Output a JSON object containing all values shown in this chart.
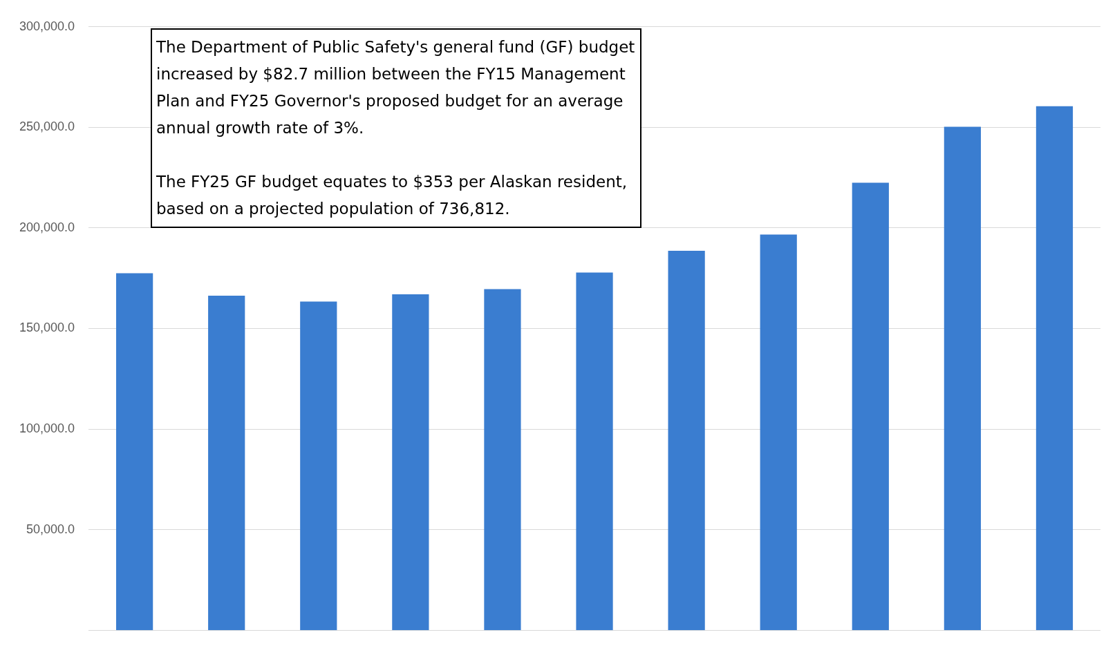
{
  "chart_data": {
    "type": "bar",
    "categories": [
      null,
      null,
      null,
      null,
      null,
      null,
      null,
      null,
      null,
      null,
      null
    ],
    "values": [
      177500,
      166300,
      163400,
      167000,
      169600,
      177800,
      188600,
      196700,
      222500,
      250300,
      260500
    ],
    "color": "#3a7dd0",
    "ylim": [
      0,
      300000
    ],
    "yticks": [
      {
        "value": 50000,
        "label": "50,000.0"
      },
      {
        "value": 100000,
        "label": "100,000.0"
      },
      {
        "value": 150000,
        "label": "150,000.0"
      },
      {
        "value": 200000,
        "label": "200,000.0"
      },
      {
        "value": 250000,
        "label": "250,000.0"
      },
      {
        "value": 300000,
        "label": "300,000.0"
      }
    ],
    "grid": "y",
    "legend": false,
    "tick_labels": "y",
    "annotations": [
      "The Department of Public Safety's general fund (GF) budget increased by $82.7 million between the FY15 Management Plan and FY25 Governor's proposed budget for an average annual growth rate of 3%.",
      "The FY25 GF budget equates to $353 per Alaskan resident, based on a projected population of 736,812."
    ]
  }
}
